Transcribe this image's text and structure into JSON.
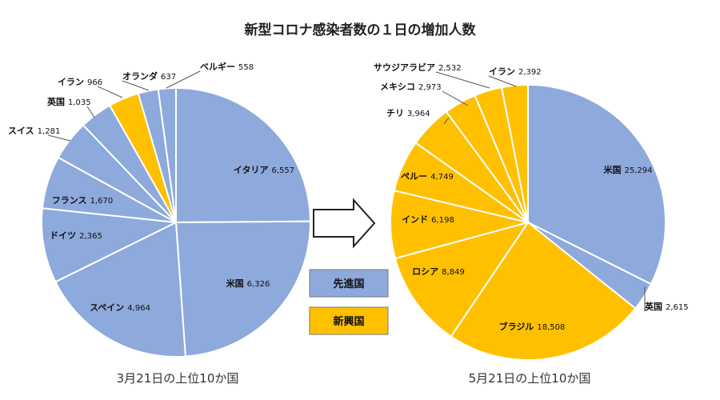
{
  "title": "新型コロナ感染者数の１日の増加人数",
  "colors": {
    "developed": "#8EA9DB",
    "emerging": "#FFC000",
    "edge": "#ffffff"
  },
  "legend": [
    {
      "label": "先進国",
      "key": "developed"
    },
    {
      "label": "新興国",
      "key": "emerging"
    }
  ],
  "chart_data": [
    {
      "type": "pie",
      "caption": "3月21日の上位10か国",
      "slices": [
        {
          "name": "イタリア",
          "value": 6557,
          "group": "developed"
        },
        {
          "name": "米国",
          "value": 6326,
          "group": "developed"
        },
        {
          "name": "スペイン",
          "value": 4964,
          "group": "developed"
        },
        {
          "name": "ドイツ",
          "value": 2365,
          "group": "developed"
        },
        {
          "name": "フランス",
          "value": 1670,
          "group": "developed"
        },
        {
          "name": "スイス",
          "value": 1281,
          "group": "developed"
        },
        {
          "name": "英国",
          "value": 1035,
          "group": "developed"
        },
        {
          "name": "イラン",
          "value": 966,
          "group": "emerging"
        },
        {
          "name": "オランダ",
          "value": 637,
          "group": "developed"
        },
        {
          "name": "ベルギー",
          "value": 558,
          "group": "developed"
        }
      ]
    },
    {
      "type": "pie",
      "caption": "5月21日の上位10か国",
      "slices": [
        {
          "name": "米国",
          "value": 25294,
          "group": "developed"
        },
        {
          "name": "英国",
          "value": 2615,
          "group": "developed"
        },
        {
          "name": "ブラジル",
          "value": 18508,
          "group": "emerging"
        },
        {
          "name": "ロシア",
          "value": 8849,
          "group": "emerging"
        },
        {
          "name": "インド",
          "value": 6198,
          "group": "emerging"
        },
        {
          "name": "ペルー",
          "value": 4749,
          "group": "emerging"
        },
        {
          "name": "チリ",
          "value": 3964,
          "group": "emerging"
        },
        {
          "name": "メキシコ",
          "value": 2973,
          "group": "emerging"
        },
        {
          "name": "サウジアラビア",
          "value": 2532,
          "group": "emerging"
        },
        {
          "name": "イラン",
          "value": 2392,
          "group": "emerging"
        }
      ]
    }
  ]
}
